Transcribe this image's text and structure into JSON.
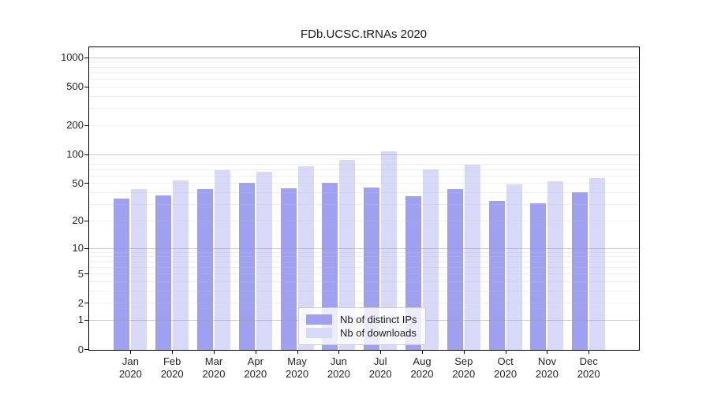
{
  "title": "FDb.UCSC.tRNAs 2020",
  "legend": {
    "item1": "Nb of distinct IPs",
    "item2": "Nb of downloads"
  },
  "colors": {
    "distinct_ips": "#a0a0f0",
    "downloads": "#d8d8f8",
    "major_grid": "#a0a0a0",
    "minor_grid": "#bebebe",
    "spine": "#000000"
  },
  "chart_data": {
    "type": "bar",
    "title": "FDb.UCSC.tRNAs 2020",
    "xlabel": "",
    "ylabel": "",
    "scale": "log1p",
    "grid": true,
    "legend_position": "lower center",
    "categories": [
      "Jan",
      "Feb",
      "Mar",
      "Apr",
      "May",
      "Jun",
      "Jul",
      "Aug",
      "Sep",
      "Oct",
      "Nov",
      "Dec"
    ],
    "category_year": "2020",
    "y_ticks": [
      0,
      1,
      2,
      5,
      10,
      20,
      50,
      100,
      200,
      500,
      1000
    ],
    "ylim": [
      0,
      1300
    ],
    "series": [
      {
        "name": "Nb of distinct IPs",
        "color": "#a0a0f0",
        "values": [
          35,
          38,
          44,
          51,
          45,
          51,
          46,
          37,
          44,
          33,
          31,
          41
        ]
      },
      {
        "name": "Nb of downloads",
        "color": "#d8d8f8",
        "values": [
          44,
          54,
          69,
          67,
          76,
          88,
          110,
          71,
          79,
          49,
          53,
          58
        ]
      }
    ]
  }
}
